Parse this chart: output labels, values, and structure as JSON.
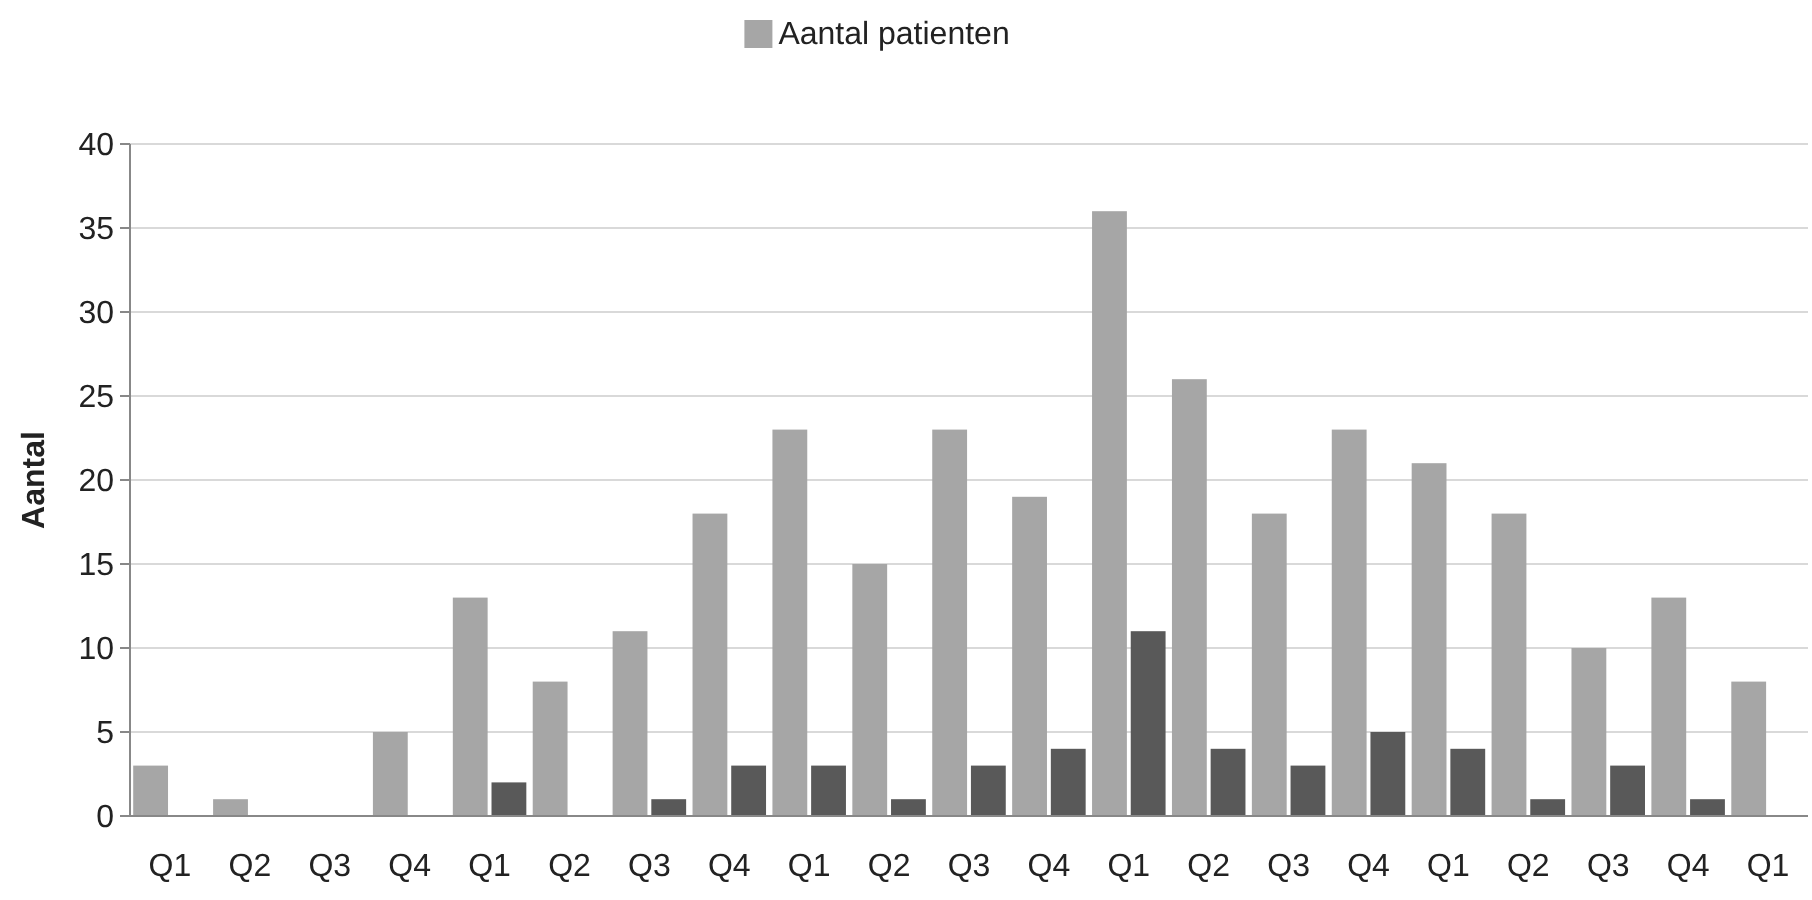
{
  "chart_data": {
    "type": "bar",
    "ylabel": "Aantal",
    "categories": [
      "Q1",
      "Q2",
      "Q3",
      "Q4",
      "Q1",
      "Q2",
      "Q3",
      "Q4",
      "Q1",
      "Q2",
      "Q3",
      "Q4",
      "Q1",
      "Q2",
      "Q3",
      "Q4",
      "Q1",
      "Q2",
      "Q3",
      "Q4",
      "Q1"
    ],
    "series": [
      {
        "name": "Aantal patienten",
        "color": "#a6a6a6",
        "values": [
          3,
          1,
          0,
          5,
          13,
          8,
          11,
          18,
          23,
          15,
          23,
          19,
          36,
          26,
          18,
          23,
          21,
          18,
          10,
          13,
          8
        ]
      },
      {
        "color": "#595959",
        "values": [
          0,
          0,
          0,
          0,
          2,
          0,
          1,
          3,
          3,
          1,
          3,
          4,
          11,
          4,
          3,
          5,
          4,
          1,
          3,
          1,
          0
        ]
      }
    ],
    "ylim": [
      0,
      40
    ],
    "yticks": [
      0,
      5,
      10,
      15,
      20,
      25,
      30,
      35,
      40
    ],
    "grid": "y",
    "legend": "top"
  }
}
